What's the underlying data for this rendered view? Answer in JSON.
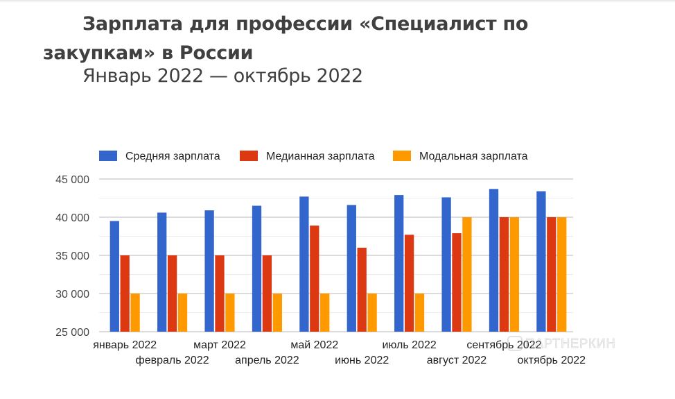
{
  "header": {
    "title": "Зарплата для профессии «Специалист по закупкам» в России",
    "subtitle": "Январь 2022 — октябрь 2022"
  },
  "watermark": {
    "text": "ПАРТНЕРКИН"
  },
  "chart_data": {
    "type": "bar",
    "title": "Зарплата для профессии «Специалист по закупкам» в России",
    "subtitle": "Январь 2022 — октябрь 2022",
    "xlabel": "",
    "ylabel": "",
    "ylim": [
      25000,
      45000
    ],
    "yticks": [
      25000,
      30000,
      35000,
      40000,
      45000
    ],
    "ytick_labels": [
      "25 000",
      "30 000",
      "35 000",
      "40 000",
      "45 000"
    ],
    "grid": true,
    "legend_position": "top",
    "categories": [
      "январь 2022",
      "февраль 2022",
      "март 2022",
      "апрель 2022",
      "май 2022",
      "июнь 2022",
      "июль 2022",
      "август 2022",
      "сентябрь 2022",
      "октябрь 2022"
    ],
    "series": [
      {
        "name": "Средняя зарплата",
        "color": "#3366cc",
        "values": [
          39500,
          40600,
          40900,
          41500,
          42700,
          41600,
          42900,
          42600,
          43700,
          43400
        ]
      },
      {
        "name": "Медианная зарплата",
        "color": "#dc3912",
        "values": [
          35000,
          35000,
          35000,
          35000,
          38900,
          36000,
          37700,
          37900,
          40000,
          40000
        ]
      },
      {
        "name": "Модальная зарплата",
        "color": "#ff9900",
        "values": [
          30000,
          30000,
          30000,
          30000,
          30000,
          30000,
          30000,
          40000,
          40000,
          40000
        ]
      }
    ]
  }
}
